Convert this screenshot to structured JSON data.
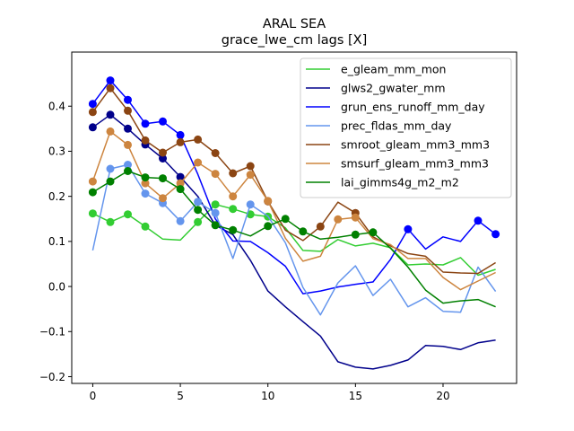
{
  "chart_data": {
    "type": "line",
    "title": "ARAL SEA",
    "subtitle": "grace_lwe_cm lags [X]",
    "xlabel": "",
    "ylabel": "",
    "xlim": [
      -1.2,
      24.2
    ],
    "ylim": [
      -0.215,
      0.52
    ],
    "xticks": [
      0,
      5,
      10,
      15,
      20
    ],
    "yticks": [
      -0.2,
      -0.1,
      0.0,
      0.1,
      0.2,
      0.3,
      0.4
    ],
    "ytick_labels": [
      "−0.2",
      "−0.1",
      "0.0",
      "0.1",
      "0.2",
      "0.3",
      "0.4"
    ],
    "grid": false,
    "legend_position": "upper-right",
    "x": [
      0,
      1,
      2,
      3,
      4,
      5,
      6,
      7,
      8,
      9,
      10,
      11,
      12,
      13,
      14,
      15,
      16,
      17,
      18,
      19,
      20,
      21,
      22,
      23
    ],
    "series": [
      {
        "name": "e_gleam_mm_mon",
        "color": "#32cd32",
        "values": [
          0.162,
          0.143,
          0.16,
          0.133,
          0.105,
          0.103,
          0.143,
          0.182,
          0.172,
          0.16,
          0.155,
          0.13,
          0.08,
          0.078,
          0.104,
          0.09,
          0.096,
          0.086,
          0.048,
          0.05,
          0.048,
          0.064,
          0.025,
          0.038
        ],
        "markers": [
          0,
          1,
          2,
          3,
          6,
          7,
          8,
          9,
          10
        ]
      },
      {
        "name": "glws2_gwater_mm",
        "color": "#00008b",
        "values": [
          0.353,
          0.381,
          0.35,
          0.315,
          0.284,
          0.243,
          0.2,
          0.136,
          0.115,
          0.058,
          -0.01,
          -0.045,
          -0.078,
          -0.11,
          -0.167,
          -0.179,
          -0.183,
          -0.175,
          -0.163,
          -0.131,
          -0.133,
          -0.14,
          -0.125,
          -0.119
        ],
        "markers": [
          0,
          1,
          2,
          3,
          4,
          5
        ]
      },
      {
        "name": "grun_ens_runoff_mm_day",
        "color": "#0000ff",
        "values": [
          0.405,
          0.457,
          0.414,
          0.361,
          0.366,
          0.336,
          0.249,
          0.15,
          0.101,
          0.1,
          0.075,
          0.045,
          -0.016,
          -0.01,
          -0.001,
          0.005,
          0.01,
          0.06,
          0.127,
          0.083,
          0.11,
          0.1,
          0.146,
          0.116
        ],
        "markers": [
          0,
          1,
          2,
          3,
          4,
          5,
          18,
          22,
          23
        ]
      },
      {
        "name": "prec_fldas_mm_day",
        "color": "#6495ed",
        "values": [
          0.08,
          0.261,
          0.27,
          0.206,
          0.185,
          0.145,
          0.188,
          0.163,
          0.062,
          0.182,
          0.156,
          0.097,
          -0.002,
          -0.063,
          0.008,
          0.046,
          -0.02,
          0.016,
          -0.045,
          -0.025,
          -0.055,
          -0.057,
          0.043,
          -0.011
        ],
        "markers": [
          1,
          2,
          3,
          4,
          5,
          6,
          7,
          9
        ]
      },
      {
        "name": "smroot_gleam_mm3_mm3",
        "color": "#8b4513",
        "values": [
          0.387,
          0.44,
          0.39,
          0.324,
          0.297,
          0.32,
          0.326,
          0.296,
          0.251,
          0.267,
          0.189,
          0.125,
          0.102,
          0.133,
          0.187,
          0.163,
          0.11,
          0.09,
          0.073,
          0.067,
          0.032,
          0.03,
          0.029,
          0.053
        ],
        "markers": [
          0,
          1,
          2,
          3,
          4,
          5,
          6,
          7,
          8,
          9,
          10,
          13,
          15
        ]
      },
      {
        "name": "smsurf_gleam_mm3_mm3",
        "color": "#cd853f",
        "values": [
          0.233,
          0.344,
          0.314,
          0.229,
          0.196,
          0.229,
          0.275,
          0.25,
          0.2,
          0.248,
          0.19,
          0.107,
          0.056,
          0.067,
          0.149,
          0.153,
          0.106,
          0.093,
          0.062,
          0.062,
          0.02,
          -0.007,
          0.012,
          0.031
        ],
        "markers": [
          0,
          1,
          2,
          3,
          4,
          5,
          6,
          7,
          8,
          9,
          10,
          14,
          15
        ]
      },
      {
        "name": "lai_gimms4g_m2_m2",
        "color": "#008000",
        "values": [
          0.209,
          0.233,
          0.256,
          0.242,
          0.24,
          0.216,
          0.17,
          0.136,
          0.125,
          0.112,
          0.134,
          0.15,
          0.122,
          0.105,
          0.109,
          0.115,
          0.12,
          0.085,
          0.043,
          -0.008,
          -0.037,
          -0.032,
          -0.029,
          -0.045
        ],
        "markers": [
          0,
          1,
          2,
          3,
          4,
          5,
          6,
          7,
          8,
          10,
          11,
          12,
          15,
          16
        ]
      }
    ]
  }
}
